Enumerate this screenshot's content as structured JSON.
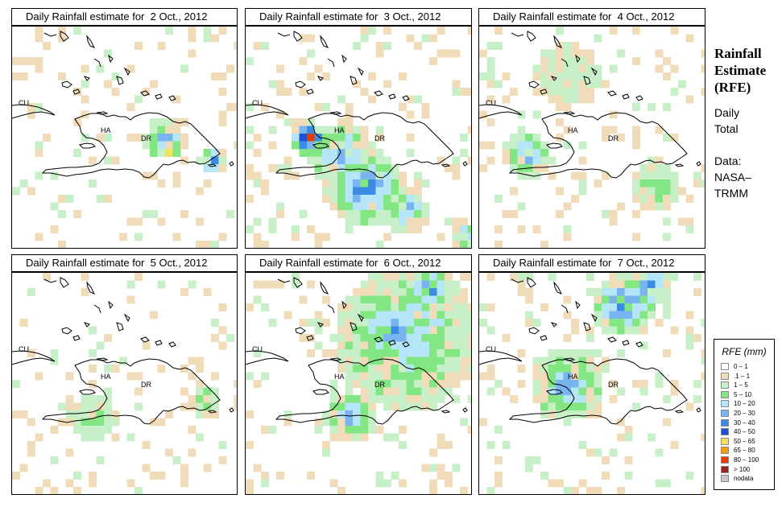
{
  "panels": [
    {
      "title": "Daily Rainfall estimate for  2 Oct., 2012",
      "date": "2 Oct., 2012",
      "seed": 11,
      "rain_level": 1
    },
    {
      "title": "Daily Rainfall estimate for  3 Oct., 2012",
      "date": "3 Oct., 2012",
      "seed": 29,
      "rain_level": 3
    },
    {
      "title": "Daily Rainfall estimate for  4 Oct., 2012",
      "date": "4 Oct., 2012",
      "seed": 47,
      "rain_level": 1
    },
    {
      "title": "Daily Rainfall estimate for  5 Oct., 2012",
      "date": "5 Oct., 2012",
      "seed": 61,
      "rain_level": 0
    },
    {
      "title": "Daily Rainfall estimate for  6 Oct., 2012",
      "date": "6 Oct., 2012",
      "seed": 83,
      "rain_level": 4
    },
    {
      "title": "Daily Rainfall estimate for  7 Oct., 2012",
      "date": "7 Oct., 2012",
      "seed": 97,
      "rain_level": 3
    }
  ],
  "map_labels": {
    "cuba": "CU",
    "haiti": "HA",
    "dominican_republic": "DR"
  },
  "side_panel": {
    "title_line1": "Rainfall",
    "title_line2": "Estimate",
    "title_line3": "(RFE)",
    "period_line1": "Daily",
    "period_line2": "Total",
    "source_line1": "Data:",
    "source_line2": "NASA–",
    "source_line3": "TRMM"
  },
  "legend": {
    "title": "RFE (mm)",
    "items": [
      {
        "label": "0 – 1",
        "color": "#ffffff"
      },
      {
        "label": ".1 – 1",
        "color": "#f0dcb8"
      },
      {
        "label": "1 – 5",
        "color": "#c8f0c8"
      },
      {
        "label": "5 – 10",
        "color": "#82e682"
      },
      {
        "label": "10 – 20",
        "color": "#b4e6f8"
      },
      {
        "label": "20 – 30",
        "color": "#78b4f0"
      },
      {
        "label": "30 – 40",
        "color": "#3c8ce6"
      },
      {
        "label": "40 – 50",
        "color": "#1e50d2"
      },
      {
        "label": "50 – 65",
        "color": "#f5e05a"
      },
      {
        "label": "65 – 80",
        "color": "#f5a000"
      },
      {
        "label": "80 – 100",
        "color": "#e63c00"
      },
      {
        "label": "> 100",
        "color": "#9b2323"
      },
      {
        "label": "nodata",
        "color": "#c8c8c8"
      }
    ]
  }
}
